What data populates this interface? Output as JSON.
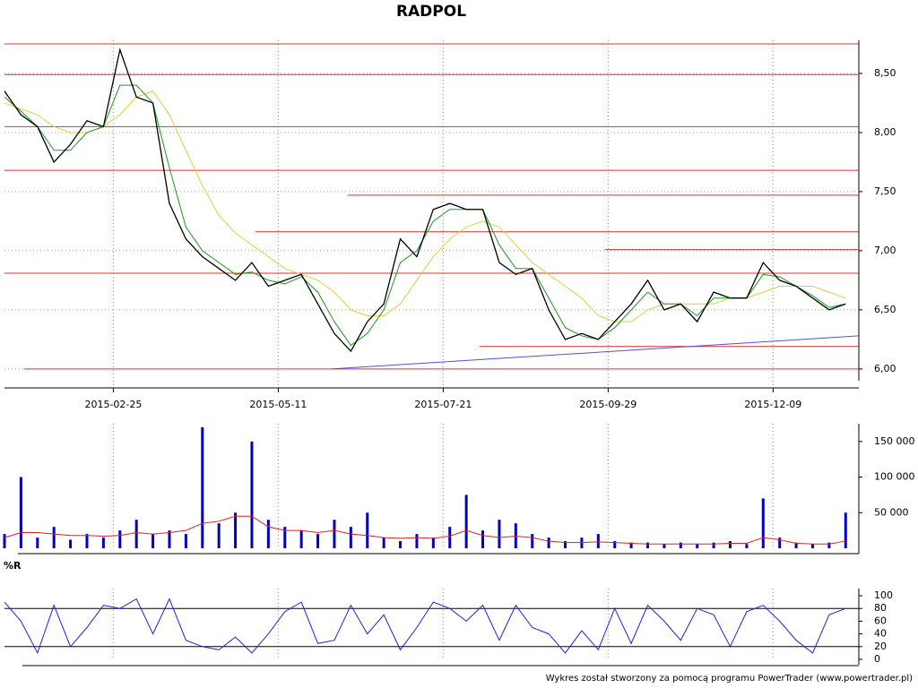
{
  "chart_data": [
    {
      "type": "line",
      "title": "RADPOL",
      "x": [
        0,
        5,
        10,
        15,
        20,
        25,
        30,
        35,
        40,
        45,
        50,
        55,
        60,
        65,
        70,
        75,
        80,
        85,
        90,
        95,
        100,
        105,
        110,
        115,
        120,
        125,
        130,
        135,
        140,
        145,
        150,
        155,
        160,
        165,
        170,
        175,
        180,
        185,
        190,
        195,
        200,
        205,
        210,
        215,
        220,
        225,
        230,
        235,
        240,
        245,
        250,
        255
      ],
      "xlim": [
        0,
        259
      ],
      "xticks": [
        {
          "value": 33,
          "label": "2015-02-25"
        },
        {
          "value": 83,
          "label": "2015-05-11"
        },
        {
          "value": 133,
          "label": "2015-07-21"
        },
        {
          "value": 183,
          "label": "2015-09-29"
        },
        {
          "value": 233,
          "label": "2015-12-09"
        }
      ],
      "ylim": [
        5.84,
        8.78
      ],
      "yticks": [
        {
          "value": 6,
          "label": "6,00"
        },
        {
          "value": 6.5,
          "label": "6,50"
        },
        {
          "value": 7,
          "label": "7,00"
        },
        {
          "value": 7.5,
          "label": "7,50"
        },
        {
          "value": 8,
          "label": "8,00"
        },
        {
          "value": 8.5,
          "label": "8,50"
        }
      ],
      "grid": true,
      "series": [
        {
          "color": "#000000",
          "values": [
            8.35,
            8.15,
            8.05,
            7.75,
            7.9,
            8.1,
            8.05,
            8.7,
            8.3,
            8.25,
            7.4,
            7.1,
            6.95,
            6.85,
            6.75,
            6.9,
            6.7,
            6.75,
            6.8,
            6.55,
            6.3,
            6.15,
            6.4,
            6.55,
            7.1,
            6.95,
            7.35,
            7.4,
            7.35,
            7.35,
            6.9,
            6.8,
            6.85,
            6.5,
            6.25,
            6.3,
            6.25,
            6.4,
            6.55,
            6.75,
            6.5,
            6.55,
            6.4,
            6.65,
            6.6,
            6.6,
            6.9,
            6.75,
            6.7,
            6.6,
            6.5,
            6.55
          ]
        },
        {
          "color": "#1a9a1a",
          "values": [
            8.3,
            8.18,
            8.05,
            7.85,
            7.85,
            8.0,
            8.05,
            8.4,
            8.4,
            8.25,
            7.7,
            7.2,
            7.0,
            6.9,
            6.8,
            6.82,
            6.75,
            6.72,
            6.78,
            6.65,
            6.4,
            6.2,
            6.3,
            6.5,
            6.9,
            7.0,
            7.25,
            7.35,
            7.35,
            7.35,
            7.05,
            6.85,
            6.85,
            6.6,
            6.35,
            6.28,
            6.25,
            6.35,
            6.5,
            6.65,
            6.55,
            6.55,
            6.45,
            6.6,
            6.6,
            6.6,
            6.8,
            6.78,
            6.7,
            6.62,
            6.52,
            6.55
          ]
        },
        {
          "color": "#d8d040",
          "values": [
            8.25,
            8.2,
            8.15,
            8.05,
            8.0,
            8.0,
            8.05,
            8.15,
            8.3,
            8.35,
            8.15,
            7.85,
            7.55,
            7.3,
            7.15,
            7.05,
            6.95,
            6.85,
            6.8,
            6.75,
            6.65,
            6.5,
            6.45,
            6.45,
            6.55,
            6.75,
            6.95,
            7.1,
            7.2,
            7.25,
            7.2,
            7.05,
            6.9,
            6.8,
            6.7,
            6.6,
            6.45,
            6.4,
            6.4,
            6.5,
            6.55,
            6.55,
            6.55,
            6.55,
            6.6,
            6.6,
            6.65,
            6.7,
            6.7,
            6.7,
            6.65,
            6.6
          ]
        }
      ],
      "levels": [
        {
          "value": 8.75,
          "from": 0
        },
        {
          "value": 8.49,
          "from": 0
        },
        {
          "value": 8.05,
          "from": 0
        },
        {
          "value": 7.68,
          "from": 0
        },
        {
          "value": 7.47,
          "from": 104
        },
        {
          "value": 7.16,
          "from": 76
        },
        {
          "value": 7.01,
          "from": 182
        },
        {
          "value": 6.81,
          "from": 0
        },
        {
          "value": 6.19,
          "from": 144
        },
        {
          "value": 6.0,
          "from": 6
        }
      ],
      "levels_color": "#e03030",
      "trendline": {
        "x": [
          99,
          259
        ],
        "y": [
          6.0,
          6.28
        ],
        "color": "#5050e0"
      }
    },
    {
      "type": "bar",
      "ylim": [
        0,
        175000
      ],
      "yticks": [
        {
          "value": 50000,
          "label": "50 000"
        },
        {
          "value": 100000,
          "label": "100 000"
        },
        {
          "value": 150000,
          "label": "150 000"
        }
      ],
      "series": [
        {
          "color": "#0000c0",
          "values": [
            20000,
            100000,
            15000,
            30000,
            12000,
            20000,
            15000,
            25000,
            40000,
            20000,
            25000,
            20000,
            170000,
            35000,
            50000,
            150000,
            40000,
            30000,
            25000,
            20000,
            40000,
            30000,
            50000,
            15000,
            10000,
            20000,
            15000,
            30000,
            75000,
            25000,
            40000,
            35000,
            20000,
            15000,
            10000,
            15000,
            20000,
            10000,
            8000,
            8000,
            6000,
            8000,
            6000,
            8000,
            10000,
            6000,
            70000,
            15000,
            8000,
            6000,
            8000,
            50000
          ]
        },
        {
          "color": "#e02020",
          "values": [
            15000,
            22000,
            22000,
            20000,
            18000,
            18000,
            17000,
            18000,
            22000,
            20000,
            22000,
            25000,
            35000,
            38000,
            45000,
            45000,
            30000,
            25000,
            25000,
            22000,
            25000,
            20000,
            18000,
            15000,
            14000,
            15000,
            14000,
            17000,
            25000,
            18000,
            15000,
            17000,
            15000,
            10000,
            8000,
            8000,
            9000,
            8000,
            7000,
            6000,
            6000,
            6000,
            6000,
            6000,
            7000,
            7000,
            15000,
            12000,
            7000,
            6000,
            6000,
            10000
          ]
        }
      ]
    },
    {
      "type": "line",
      "title": "%R",
      "ylim": [
        0,
        100
      ],
      "yticks": [
        0,
        20,
        40,
        60,
        80,
        100
      ],
      "bands": [
        20,
        80
      ],
      "series": [
        {
          "color": "#2020e0",
          "values": [
            90,
            60,
            10,
            85,
            20,
            50,
            85,
            80,
            95,
            40,
            95,
            30,
            20,
            15,
            35,
            10,
            40,
            75,
            90,
            25,
            30,
            85,
            40,
            70,
            15,
            50,
            90,
            80,
            60,
            85,
            30,
            85,
            50,
            40,
            10,
            45,
            15,
            80,
            25,
            85,
            60,
            30,
            80,
            70,
            20,
            75,
            85,
            60,
            30,
            10,
            70,
            80
          ]
        }
      ]
    }
  ],
  "footer": "Wykres został stworzony za pomocą programu PowerTrader (www.powertrader.pl)"
}
